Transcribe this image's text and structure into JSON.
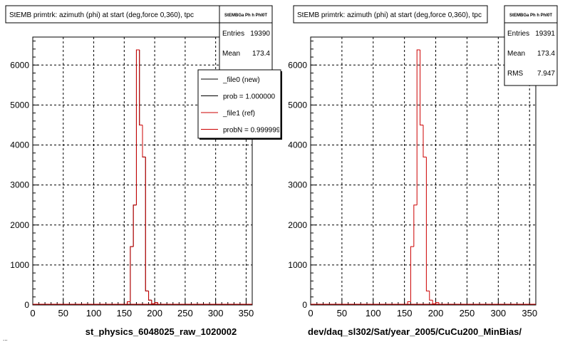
{
  "window": {
    "footer_partial_text": "..."
  },
  "panels": [
    {
      "title": "StEMB primtrk: azimuth (phi) at start (deg,force 0,360), tpc",
      "stats": {
        "name": "StEMBGa Ph h PhI0T",
        "rows": [
          {
            "label": "Entries",
            "value": "19390"
          },
          {
            "label": "Mean",
            "value": "173.4"
          }
        ]
      },
      "legend": {
        "entries": [
          {
            "text": "_file0 (new)",
            "color": "#000000"
          },
          {
            "text": "prob = 1.000000",
            "color": "#000000"
          },
          {
            "text": "_file1 (ref)",
            "color": "#cc0000"
          },
          {
            "text": "probN = 0.999999",
            "color": "#cc0000"
          }
        ]
      },
      "xlabel": "st_physics_6048025_raw_1020002"
    },
    {
      "title": "StEMB primtrk: azimuth (phi) at start (deg,force 0,360), tpc",
      "stats": {
        "name": "StEMBGa Ph h PhI0T",
        "rows": [
          {
            "label": "Entries",
            "value": "19391"
          },
          {
            "label": "Mean",
            "value": "173.4"
          },
          {
            "label": "RMS",
            "value": "7.947"
          }
        ]
      },
      "xlabel": "dev/daq_sl302/Sat/year_2005/CuCu200_MinBias/"
    }
  ],
  "chart_data": [
    {
      "type": "histogram",
      "title": "StEMB primtrk: azimuth (phi) at start (deg,force 0,360), tpc",
      "xlabel": "st_physics_6048025_raw_1020002",
      "ylabel": "",
      "xlim": [
        0,
        360
      ],
      "ylim": [
        0,
        6700
      ],
      "xticks": [
        0,
        50,
        100,
        150,
        200,
        250,
        300,
        350
      ],
      "yticks": [
        0,
        1000,
        2000,
        3000,
        4000,
        5000,
        6000
      ],
      "grid": true,
      "bin_width": 5,
      "series": [
        {
          "name": "_file0 (new)",
          "color": "#000000",
          "bin_low_edges": [
            115,
            120,
            155,
            160,
            165,
            170,
            175,
            180,
            185,
            190,
            195,
            200,
            205
          ],
          "values": [
            5,
            10,
            80,
            1460,
            2500,
            6380,
            4500,
            3700,
            350,
            120,
            30,
            60,
            15
          ]
        },
        {
          "name": "_file1 (ref)",
          "color": "#cc0000",
          "bin_low_edges": [
            115,
            120,
            155,
            160,
            165,
            170,
            175,
            180,
            185,
            190,
            195,
            200,
            205
          ],
          "values": [
            5,
            10,
            80,
            1460,
            2500,
            6380,
            4500,
            3700,
            350,
            120,
            30,
            60,
            15
          ]
        }
      ]
    },
    {
      "type": "histogram",
      "title": "StEMB primtrk: azimuth (phi) at start (deg,force 0,360), tpc",
      "xlabel": "dev/daq_sl302/Sat/year_2005/CuCu200_MinBias/",
      "ylabel": "",
      "xlim": [
        0,
        360
      ],
      "ylim": [
        0,
        6700
      ],
      "xticks": [
        0,
        50,
        100,
        150,
        200,
        250,
        300,
        350
      ],
      "yticks": [
        0,
        1000,
        2000,
        3000,
        4000,
        5000,
        6000
      ],
      "grid": true,
      "bin_width": 5,
      "series": [
        {
          "color": "#cc0000",
          "bin_low_edges": [
            115,
            120,
            155,
            160,
            165,
            170,
            175,
            180,
            185,
            190,
            195,
            200,
            205
          ],
          "values": [
            5,
            10,
            80,
            1460,
            2500,
            6380,
            4500,
            3700,
            350,
            120,
            30,
            60,
            15
          ]
        }
      ]
    }
  ]
}
